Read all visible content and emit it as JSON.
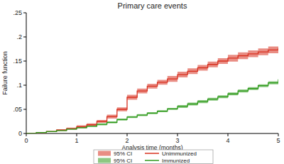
{
  "chart_data": {
    "type": "line",
    "title": "Primary care events",
    "x_label": "Analysis time (months)",
    "y_label": "Failure function",
    "x": [
      0,
      0.2,
      0.4,
      0.6,
      0.8,
      1.0,
      1.2,
      1.4,
      1.6,
      1.8,
      2.0,
      2.2,
      2.4,
      2.6,
      2.8,
      3.0,
      3.2,
      3.4,
      3.6,
      3.8,
      4.0,
      4.2,
      4.4,
      4.6,
      4.8,
      5.0
    ],
    "xlim": [
      0,
      5
    ],
    "xticks": [
      0,
      1,
      2,
      3,
      4,
      5
    ],
    "ylim": [
      0,
      0.25
    ],
    "yticks": [
      0,
      {
        "value": 0.05,
        "label": ".05"
      },
      {
        "value": 0.1,
        "label": ".1"
      },
      {
        "value": 0.15,
        "label": ".15"
      },
      {
        "value": 0.2,
        "label": ".2"
      },
      {
        "value": 0.25,
        "label": ".25"
      }
    ],
    "grid": false,
    "legend": "bottom",
    "line_style": "step",
    "series": [
      {
        "name": "Unimmunized",
        "ci_label": "95% CI",
        "color": "#d7301f",
        "values": [
          0,
          0.002,
          0.004,
          0.007,
          0.01,
          0.014,
          0.018,
          0.025,
          0.035,
          0.05,
          0.075,
          0.088,
          0.098,
          0.106,
          0.113,
          0.122,
          0.129,
          0.136,
          0.143,
          0.15,
          0.156,
          0.161,
          0.165,
          0.169,
          0.173,
          0.177
        ],
        "lower": [
          0,
          0.001,
          0.003,
          0.005,
          0.008,
          0.011,
          0.015,
          0.022,
          0.031,
          0.046,
          0.07,
          0.083,
          0.093,
          0.101,
          0.107,
          0.116,
          0.123,
          0.13,
          0.137,
          0.144,
          0.149,
          0.154,
          0.158,
          0.162,
          0.166,
          0.17
        ],
        "upper": [
          0,
          0.003,
          0.005,
          0.009,
          0.012,
          0.017,
          0.021,
          0.028,
          0.039,
          0.054,
          0.08,
          0.093,
          0.103,
          0.111,
          0.119,
          0.128,
          0.135,
          0.142,
          0.149,
          0.156,
          0.163,
          0.168,
          0.172,
          0.176,
          0.18,
          0.184
        ]
      },
      {
        "name": "Immunized",
        "ci_label": "95% CI",
        "color": "#2f9a1c",
        "values": [
          0,
          0.002,
          0.004,
          0.006,
          0.009,
          0.012,
          0.015,
          0.019,
          0.023,
          0.029,
          0.034,
          0.038,
          0.042,
          0.046,
          0.051,
          0.056,
          0.061,
          0.066,
          0.071,
          0.076,
          0.082,
          0.088,
          0.093,
          0.099,
          0.105,
          0.112
        ],
        "lower": [
          0,
          0.001,
          0.003,
          0.005,
          0.008,
          0.011,
          0.014,
          0.017,
          0.021,
          0.027,
          0.032,
          0.036,
          0.04,
          0.044,
          0.049,
          0.053,
          0.058,
          0.063,
          0.068,
          0.073,
          0.079,
          0.085,
          0.09,
          0.096,
          0.102,
          0.109
        ],
        "upper": [
          0,
          0.003,
          0.005,
          0.007,
          0.01,
          0.013,
          0.016,
          0.021,
          0.025,
          0.031,
          0.036,
          0.04,
          0.044,
          0.048,
          0.053,
          0.059,
          0.064,
          0.069,
          0.074,
          0.079,
          0.085,
          0.091,
          0.096,
          0.102,
          0.108,
          0.115
        ]
      }
    ]
  }
}
